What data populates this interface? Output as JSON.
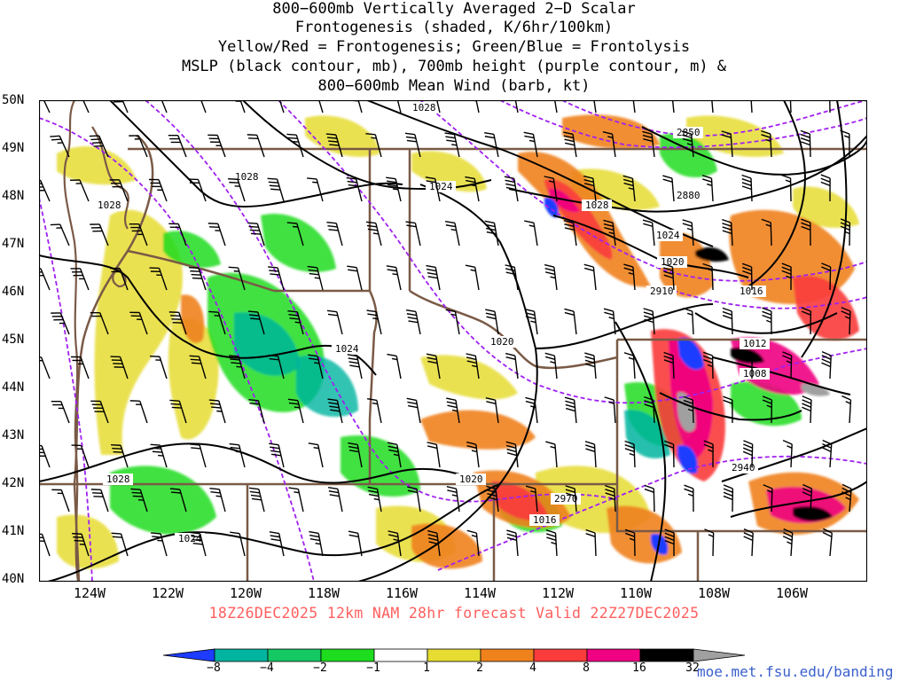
{
  "title": {
    "line1": "800−600mb Vertically Averaged 2−D Scalar",
    "line2": "Frontogenesis (shaded, K/6hr/100km)",
    "line3": "Yellow/Red = Frontogenesis;  Green/Blue = Frontolysis",
    "line4": "MSLP (black contour, mb), 700mb height (purple contour, m) &",
    "line5": "800−600mb Mean Wind (barb, kt)"
  },
  "axes": {
    "lat_labels": [
      "50N",
      "49N",
      "48N",
      "47N",
      "46N",
      "45N",
      "44N",
      "43N",
      "42N",
      "41N",
      "40N"
    ],
    "lon_labels": [
      "124W",
      "122W",
      "120W",
      "118W",
      "116W",
      "114W",
      "112W",
      "110W",
      "108W",
      "106W"
    ]
  },
  "run_info": "18Z26DEC2025  12km  NAM  28hr  forecast  Valid  22Z27DEC2025",
  "colorbar": {
    "labels": [
      "−8",
      "−4",
      "−2",
      "−1",
      "1",
      "2",
      "4",
      "8",
      "16",
      "32"
    ],
    "colors": [
      "#1e3cff",
      "#00b4a0",
      "#14c864",
      "#1edc1e",
      "#ffffff",
      "#e6dc32",
      "#f0821e",
      "#fa3c3c",
      "#f00082",
      "#000000",
      "#a0a0a0"
    ]
  },
  "contour_labels": {
    "mslp": [
      "1028",
      "1028",
      "1028",
      "1028",
      "1024",
      "1028",
      "1024",
      "1024",
      "1020",
      "1016",
      "1012",
      "1008",
      "1020",
      "1024",
      "1020",
      "1028",
      "1016"
    ],
    "height": [
      "2850",
      "2880",
      "2910",
      "2940",
      "2970"
    ]
  },
  "map_colors": {
    "state_border": "#7a5a46",
    "coast": "#7a5a46",
    "mslp_contour": "#000000",
    "height_contour": "#a020f0",
    "barb": "#000000"
  },
  "credit": "moe.met.fsu.edu/banding"
}
